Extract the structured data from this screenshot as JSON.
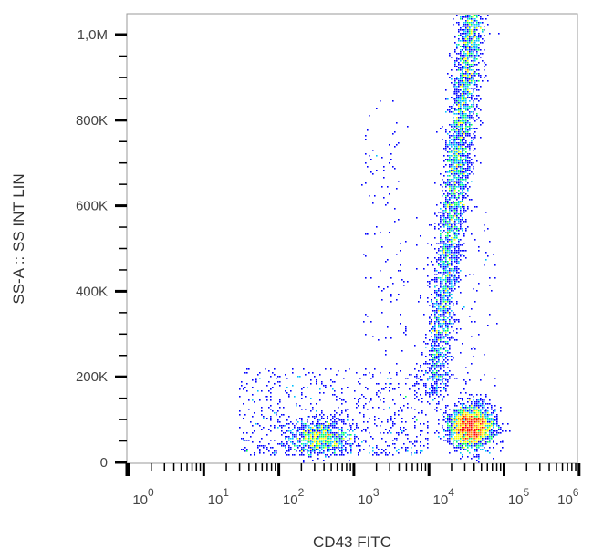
{
  "chart_data": {
    "type": "scatter",
    "style": "density-dot-plot",
    "xlabel": "CD43 FITC",
    "ylabel": "SS-A :: SS INT LIN",
    "x_scale": "log",
    "xlim": [
      1,
      1000000
    ],
    "ylim": [
      0,
      1050000
    ],
    "x_ticks": [
      {
        "base": "10",
        "exp": "0"
      },
      {
        "base": "10",
        "exp": "1"
      },
      {
        "base": "10",
        "exp": "2"
      },
      {
        "base": "10",
        "exp": "3"
      },
      {
        "base": "10",
        "exp": "4"
      },
      {
        "base": "10",
        "exp": "5"
      },
      {
        "base": "10",
        "exp": "6"
      }
    ],
    "y_ticks": [
      {
        "value": 0,
        "label": "0"
      },
      {
        "value": 200000,
        "label": "200K"
      },
      {
        "value": 400000,
        "label": "400K"
      },
      {
        "value": 600000,
        "label": "600K"
      },
      {
        "value": 800000,
        "label": "800K"
      },
      {
        "value": 1000000,
        "label": "1,0M"
      }
    ],
    "grid": false,
    "colormap": [
      "#0000ff",
      "#00c0ff",
      "#00ff60",
      "#ffff00",
      "#ff8000",
      "#ff0000"
    ],
    "populations": [
      {
        "x_center": 35000,
        "y_center": 85000,
        "x_spread_decades": 0.15,
        "y_spread": 25000,
        "relative_density": "highest"
      },
      {
        "x_from": 9000,
        "x_to": 30000,
        "y_from": 150000,
        "y_to": 1050000,
        "relative_density": "high"
      },
      {
        "x_center": 350,
        "y_center": 60000,
        "x_spread_decades": 0.2,
        "y_spread": 20000,
        "relative_density": "medium"
      },
      {
        "x_from": 30,
        "x_to": 10000,
        "y_from": 20000,
        "y_to": 220000,
        "relative_density": "sparse"
      }
    ]
  }
}
